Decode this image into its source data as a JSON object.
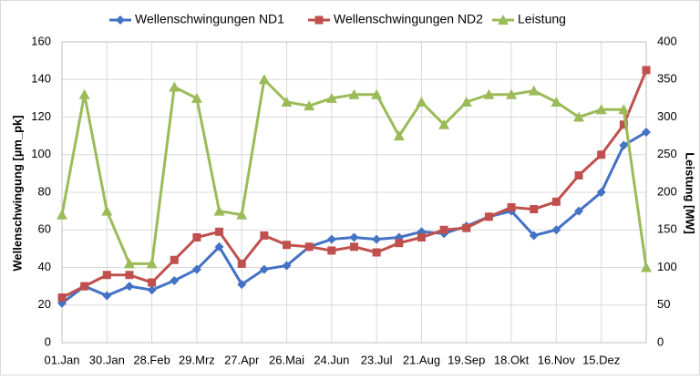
{
  "chart_data": {
    "type": "line",
    "categories": [
      "01.Jan",
      null,
      "30.Jan",
      null,
      "28.Feb",
      null,
      "29.Mrz",
      null,
      "27.Apr",
      null,
      "26.Mai",
      null,
      "24.Jun",
      null,
      "23.Jul",
      null,
      "21.Aug",
      null,
      "19.Sep",
      null,
      "18.Okt",
      null,
      "16.Nov",
      null,
      "15.Dez",
      null,
      null
    ],
    "series": [
      {
        "name": "Wellenschwingungen ND1",
        "color": "#4472c4",
        "marker": "diamond",
        "values": [
          21,
          30,
          25,
          30,
          28,
          33,
          39,
          51,
          31,
          39,
          41,
          51,
          55,
          56,
          55,
          56,
          59,
          58,
          62,
          67,
          70,
          57,
          60,
          70,
          80,
          105,
          112
        ]
      },
      {
        "name": "Wellenschwingungen ND2",
        "color": "#c0504d",
        "marker": "square",
        "values": [
          24,
          30,
          36,
          36,
          32,
          44,
          56,
          59,
          42,
          57,
          52,
          51,
          49,
          51,
          48,
          53,
          56,
          60,
          61,
          67,
          72,
          71,
          75,
          89,
          100,
          116,
          145
        ]
      },
      {
        "name": "Leistung",
        "color": "#9bbb59",
        "marker": "triangle",
        "axis": "y2",
        "values": [
          170,
          330,
          175,
          105,
          105,
          340,
          325,
          175,
          170,
          350,
          320,
          315,
          325,
          330,
          330,
          275,
          320,
          290,
          320,
          330,
          330,
          335,
          320,
          300,
          310,
          310,
          100
        ]
      }
    ],
    "ylabel": "Wellenschwingung [µm_pk]",
    "y2label": "Leistung [MW]",
    "ylim": [
      0,
      160
    ],
    "yticks": [
      0,
      20,
      40,
      60,
      80,
      100,
      120,
      140,
      160
    ],
    "y2lim": [
      0,
      400
    ],
    "y2ticks": [
      0,
      50,
      100,
      150,
      200,
      250,
      300,
      350,
      400
    ],
    "grid": true,
    "legend": "top"
  }
}
